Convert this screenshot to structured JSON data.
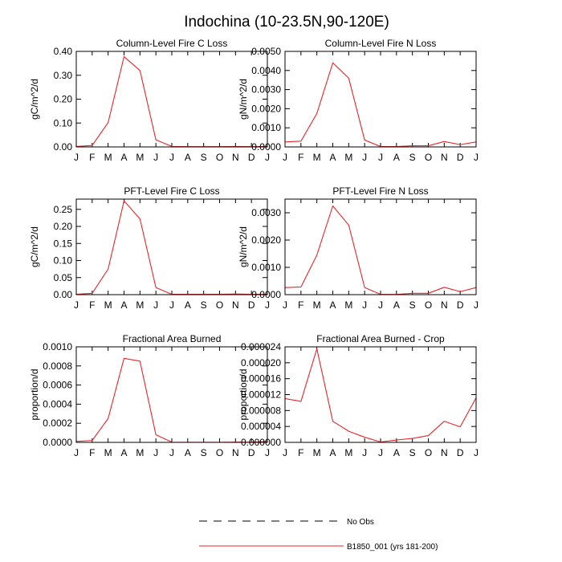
{
  "title": "Indochina (10-23.5N,90-120E)",
  "legend": {
    "entries": [
      {
        "label": "No Obs",
        "style": "dashed",
        "color": "#000000"
      },
      {
        "label": "B1850_001 (yrs 181-200)",
        "style": "solid",
        "color": "#e8262b"
      }
    ],
    "placement": "bottom-center"
  },
  "chart_data": [
    {
      "type": "line",
      "title": "Column-Level Fire C Loss",
      "ylabel": "gC/m^2/d",
      "categories": [
        "J",
        "F",
        "M",
        "A",
        "M",
        "J",
        "J",
        "A",
        "S",
        "O",
        "N",
        "D",
        "J"
      ],
      "ylim": [
        0,
        0.4
      ],
      "yticks": [
        "0.00",
        "0.10",
        "0.20",
        "0.30",
        "0.40"
      ],
      "series": [
        {
          "name": "B1850_001 (yrs 181-200)",
          "color": "#e8262b",
          "values": [
            0.002,
            0.006,
            0.102,
            0.378,
            0.32,
            0.03,
            0.002,
            0.001,
            0.001,
            0.001,
            0.002,
            0.001,
            0.002
          ]
        }
      ]
    },
    {
      "type": "line",
      "title": "Column-Level Fire N Loss",
      "ylabel": "gN/m^2/d",
      "categories": [
        "J",
        "F",
        "M",
        "A",
        "M",
        "J",
        "J",
        "A",
        "S",
        "O",
        "N",
        "D",
        "J"
      ],
      "ylim": [
        0,
        0.005
      ],
      "yticks": [
        "0.0000",
        "0.0010",
        "0.0020",
        "0.0030",
        "0.0040",
        "0.0050"
      ],
      "series": [
        {
          "name": "B1850_001 (yrs 181-200)",
          "color": "#e8262b",
          "values": [
            0.00026,
            0.0003,
            0.00175,
            0.0044,
            0.0036,
            0.00036,
            2e-05,
            2e-05,
            6e-05,
            6e-05,
            0.00028,
            0.00012,
            0.00026
          ]
        }
      ]
    },
    {
      "type": "line",
      "title": "PFT-Level Fire C Loss",
      "ylabel": "gC/m^2/d",
      "categories": [
        "J",
        "F",
        "M",
        "A",
        "M",
        "J",
        "J",
        "A",
        "S",
        "O",
        "N",
        "D",
        "J"
      ],
      "ylim": [
        0,
        0.28
      ],
      "yticks": [
        "0.00",
        "0.05",
        "0.10",
        "0.15",
        "0.20",
        "0.25"
      ],
      "series": [
        {
          "name": "B1850_001 (yrs 181-200)",
          "color": "#e8262b",
          "values": [
            0.001,
            0.004,
            0.075,
            0.275,
            0.222,
            0.021,
            0.001,
            0.001,
            0.001,
            0.001,
            0.002,
            0.001,
            0.001
          ]
        }
      ]
    },
    {
      "type": "line",
      "title": "PFT-Level Fire N Loss",
      "ylabel": "gN/m^2/d",
      "categories": [
        "J",
        "F",
        "M",
        "A",
        "M",
        "J",
        "J",
        "A",
        "S",
        "O",
        "N",
        "D",
        "J"
      ],
      "ylim": [
        0,
        0.0035
      ],
      "yticks": [
        "0.0000",
        "0.0010",
        "0.0020",
        "0.0030"
      ],
      "series": [
        {
          "name": "B1850_001 (yrs 181-200)",
          "color": "#e8262b",
          "values": [
            0.00026,
            0.00028,
            0.00145,
            0.00325,
            0.00255,
            0.00026,
            1e-05,
            1e-05,
            5e-05,
            5e-05,
            0.00027,
            0.00011,
            0.00026
          ]
        }
      ]
    },
    {
      "type": "line",
      "title": "Fractional Area Burned",
      "ylabel": "proportion/d",
      "categories": [
        "J",
        "F",
        "M",
        "A",
        "M",
        "J",
        "J",
        "A",
        "S",
        "O",
        "N",
        "D",
        "J"
      ],
      "ylim": [
        0,
        0.001
      ],
      "yticks": [
        "0.0000",
        "0.0002",
        "0.0004",
        "0.0006",
        "0.0008",
        "0.0010"
      ],
      "series": [
        {
          "name": "B1850_001 (yrs 181-200)",
          "color": "#e8262b",
          "values": [
            1e-05,
            2e-05,
            0.00025,
            0.00088,
            0.00085,
            8e-05,
            2e-06,
            1e-06,
            1e-06,
            1e-06,
            3e-06,
            2e-06,
            1e-05
          ]
        }
      ]
    },
    {
      "type": "line",
      "title": "Fractional Area Burned - Crop",
      "ylabel": "proportion/d",
      "categories": [
        "J",
        "F",
        "M",
        "A",
        "M",
        "J",
        "J",
        "A",
        "S",
        "O",
        "N",
        "D",
        "J"
      ],
      "ylim": [
        0,
        2.4e-05
      ],
      "yticks": [
        "0.000000",
        "0.000004",
        "0.000008",
        "0.000012",
        "0.000016",
        "0.000020",
        "0.000024"
      ],
      "series": [
        {
          "name": "B1850_001 (yrs 181-200)",
          "color": "#e8262b",
          "values": [
            1.1e-05,
            1.03e-05,
            2.35e-05,
            5.3e-06,
            2.8e-06,
            1.3e-06,
            1e-07,
            6e-07,
            1e-06,
            1.7e-06,
            5.3e-06,
            3.9e-06,
            1.12e-05
          ]
        }
      ]
    }
  ]
}
